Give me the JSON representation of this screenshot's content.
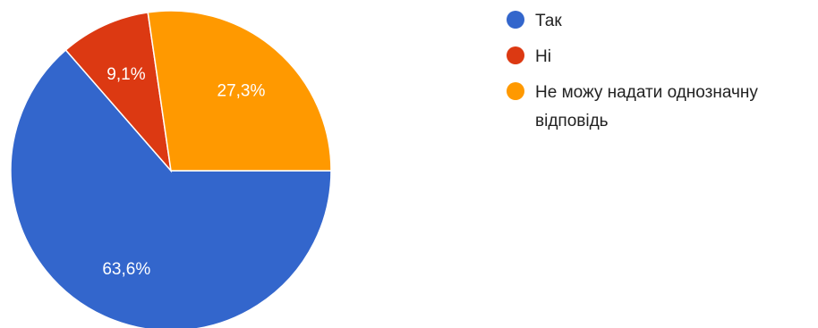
{
  "chart_data": {
    "type": "pie",
    "categories": [
      "Так",
      "Ні",
      "Не можу надати однозначну відповідь"
    ],
    "values": [
      63.6,
      9.1,
      27.3
    ],
    "labels": [
      "63,6%",
      "9,1%",
      "27,3%"
    ],
    "colors": [
      "#3366cc",
      "#dc3912",
      "#ff9900"
    ],
    "legend": {
      "position": "right",
      "entries": [
        {
          "lines": [
            "Так"
          ]
        },
        {
          "lines": [
            "Ні"
          ]
        },
        {
          "lines": [
            "Не можу надати однозначну",
            "відповідь"
          ]
        }
      ]
    }
  }
}
